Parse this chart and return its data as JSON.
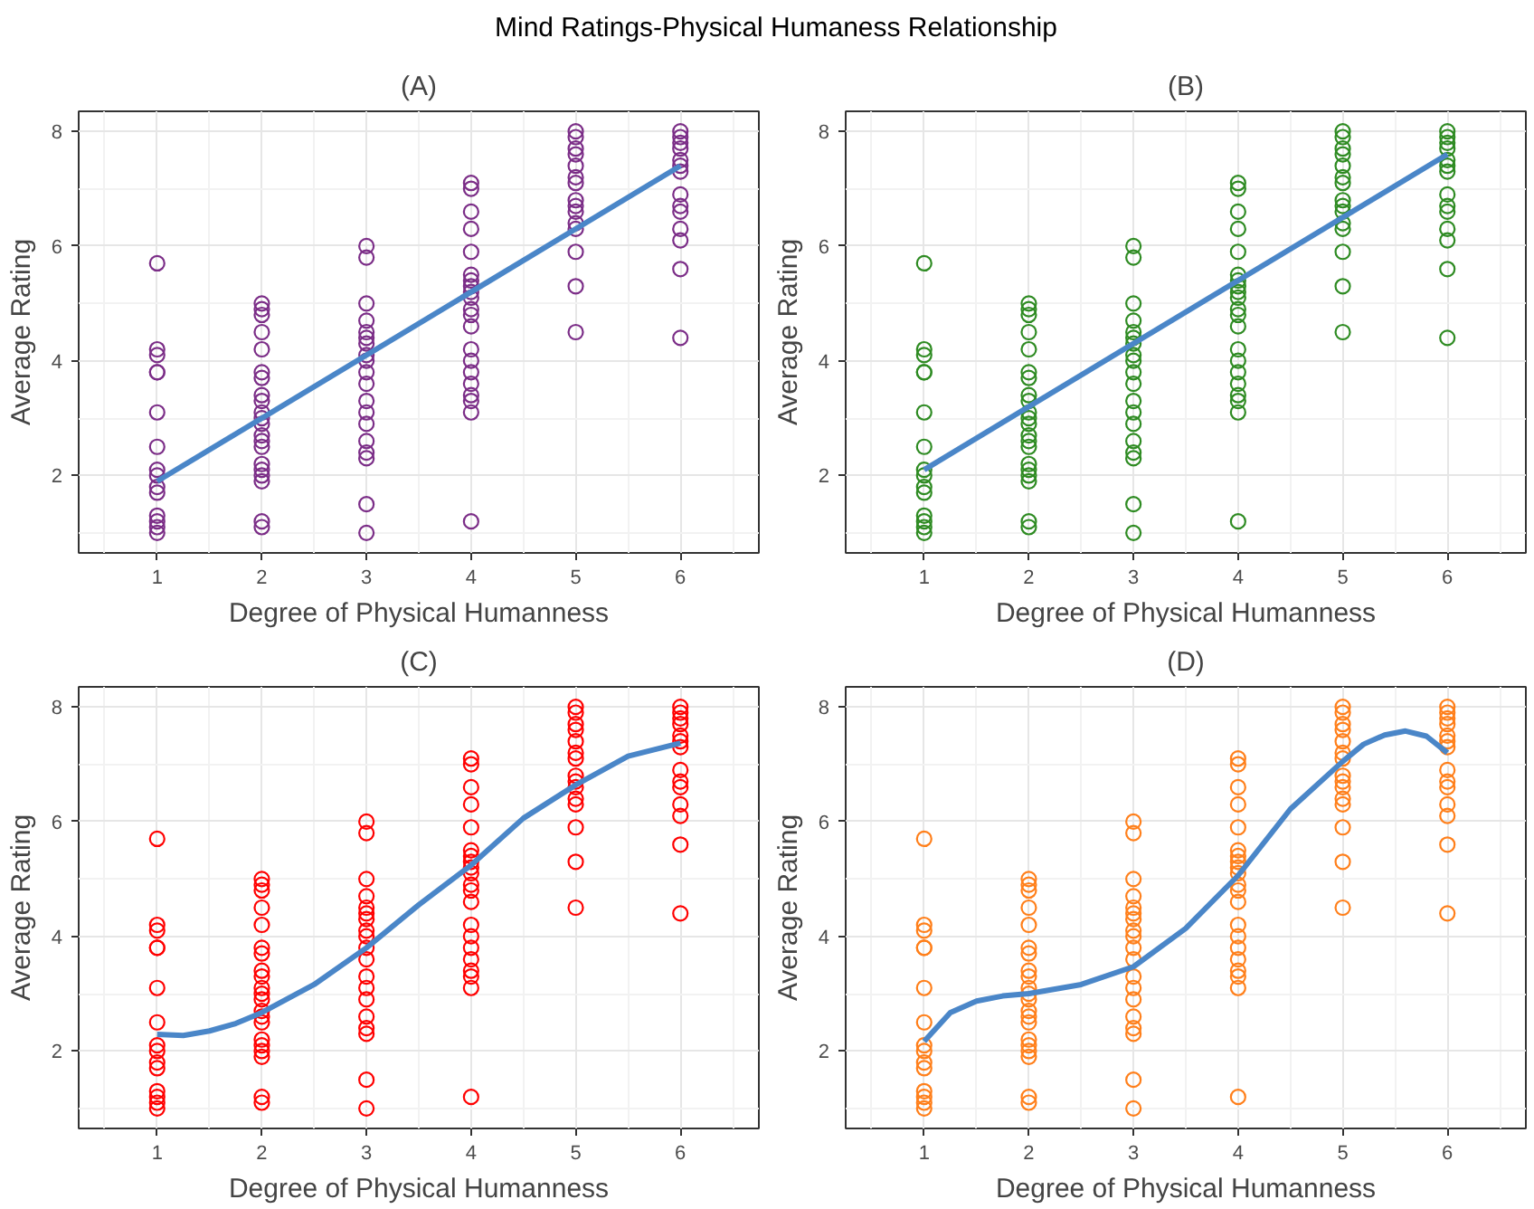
{
  "chart_data": [
    {
      "type": "scatter",
      "title": "(A)",
      "annotations": [
        "Mind Ratings-Physical Humaness Relationship"
      ],
      "xlabel": "Degree of Physical Humanness",
      "ylabel": "Average Rating",
      "xlim": [
        0.25,
        6.75
      ],
      "ylim": [
        0.65,
        8.35
      ],
      "xticks": [
        1,
        2,
        3,
        4,
        5,
        6
      ],
      "yticks": [
        2,
        4,
        6,
        8
      ],
      "grid": true,
      "series": [
        {
          "marker": "circle",
          "color": "#7b2d87",
          "x": [
            1,
            1,
            1,
            1,
            1,
            1,
            1,
            1,
            1,
            1,
            1,
            1,
            1,
            1,
            1,
            2,
            2,
            2,
            2,
            2,
            2,
            2,
            2,
            2,
            2,
            2,
            2,
            2,
            2,
            2,
            2,
            2,
            2,
            2,
            2,
            2,
            3,
            3,
            3,
            3,
            3,
            3,
            3,
            3,
            3,
            3,
            3,
            3,
            3,
            3,
            3,
            3,
            3,
            3,
            3,
            4,
            4,
            4,
            4,
            4,
            4,
            4,
            4,
            4,
            4,
            4,
            4,
            4,
            4,
            4,
            4,
            4,
            4,
            4,
            4,
            4,
            5,
            5,
            5,
            5,
            5,
            5,
            5,
            5,
            5,
            5,
            5,
            5,
            5,
            5,
            5,
            6,
            6,
            6,
            6,
            6,
            6,
            6,
            6,
            6,
            6,
            6,
            6,
            6,
            6
          ],
          "values": [
            5.7,
            4.2,
            4.1,
            3.8,
            3.8,
            3.1,
            2.5,
            2.1,
            2.0,
            1.8,
            1.7,
            1.3,
            1.2,
            1.1,
            1.0,
            5.0,
            4.9,
            4.8,
            4.5,
            4.2,
            3.8,
            3.7,
            3.4,
            3.3,
            3.1,
            3.0,
            2.9,
            2.7,
            2.6,
            2.5,
            2.2,
            2.1,
            2.0,
            1.9,
            1.2,
            1.1,
            6.0,
            5.8,
            5.0,
            4.7,
            4.5,
            4.4,
            4.3,
            4.1,
            4.0,
            3.8,
            3.6,
            3.3,
            3.1,
            2.9,
            2.6,
            2.4,
            2.3,
            1.5,
            1.0,
            7.1,
            7.0,
            6.6,
            6.3,
            5.9,
            5.5,
            5.4,
            5.3,
            5.2,
            5.1,
            4.9,
            4.8,
            4.6,
            4.2,
            4.0,
            3.8,
            3.6,
            3.4,
            3.3,
            3.1,
            1.2,
            8.0,
            7.9,
            7.7,
            7.6,
            7.4,
            7.2,
            7.1,
            6.8,
            6.7,
            6.6,
            6.4,
            6.3,
            5.9,
            5.3,
            4.5,
            8.0,
            7.9,
            7.8,
            7.7,
            7.5,
            7.4,
            7.3,
            6.9,
            6.7,
            6.6,
            6.3,
            6.1,
            5.6,
            4.4
          ]
        },
        {
          "type": "line",
          "color": "#4a86c8",
          "x": [
            1,
            6
          ],
          "values": [
            1.9,
            7.4
          ]
        }
      ]
    },
    {
      "type": "scatter",
      "title": "(B)",
      "xlabel": "Degree of Physical Humanness",
      "ylabel": "Average Rating",
      "xlim": [
        0.25,
        6.75
      ],
      "ylim": [
        0.65,
        8.35
      ],
      "xticks": [
        1,
        2,
        3,
        4,
        5,
        6
      ],
      "yticks": [
        2,
        4,
        6,
        8
      ],
      "grid": true,
      "series": [
        {
          "marker": "circle",
          "color": "#2e8b22",
          "x": [
            1,
            1,
            1,
            1,
            1,
            1,
            1,
            1,
            1,
            1,
            1,
            1,
            1,
            1,
            1,
            2,
            2,
            2,
            2,
            2,
            2,
            2,
            2,
            2,
            2,
            2,
            2,
            2,
            2,
            2,
            2,
            2,
            2,
            2,
            2,
            2,
            3,
            3,
            3,
            3,
            3,
            3,
            3,
            3,
            3,
            3,
            3,
            3,
            3,
            3,
            3,
            3,
            3,
            3,
            3,
            4,
            4,
            4,
            4,
            4,
            4,
            4,
            4,
            4,
            4,
            4,
            4,
            4,
            4,
            4,
            4,
            4,
            4,
            4,
            4,
            4,
            5,
            5,
            5,
            5,
            5,
            5,
            5,
            5,
            5,
            5,
            5,
            5,
            5,
            5,
            5,
            6,
            6,
            6,
            6,
            6,
            6,
            6,
            6,
            6,
            6,
            6,
            6,
            6,
            6
          ],
          "values": [
            5.7,
            4.2,
            4.1,
            3.8,
            3.8,
            3.1,
            2.5,
            2.1,
            2.0,
            1.8,
            1.7,
            1.3,
            1.2,
            1.1,
            1.0,
            5.0,
            4.9,
            4.8,
            4.5,
            4.2,
            3.8,
            3.7,
            3.4,
            3.3,
            3.1,
            3.0,
            2.9,
            2.7,
            2.6,
            2.5,
            2.2,
            2.1,
            2.0,
            1.9,
            1.2,
            1.1,
            6.0,
            5.8,
            5.0,
            4.7,
            4.5,
            4.4,
            4.3,
            4.1,
            4.0,
            3.8,
            3.6,
            3.3,
            3.1,
            2.9,
            2.6,
            2.4,
            2.3,
            1.5,
            1.0,
            7.1,
            7.0,
            6.6,
            6.3,
            5.9,
            5.5,
            5.4,
            5.3,
            5.2,
            5.1,
            4.9,
            4.8,
            4.6,
            4.2,
            4.0,
            3.8,
            3.6,
            3.4,
            3.3,
            3.1,
            1.2,
            8.0,
            7.9,
            7.7,
            7.6,
            7.4,
            7.2,
            7.1,
            6.8,
            6.7,
            6.6,
            6.4,
            6.3,
            5.9,
            5.3,
            4.5,
            8.0,
            7.9,
            7.8,
            7.7,
            7.5,
            7.4,
            7.3,
            6.9,
            6.7,
            6.6,
            6.3,
            6.1,
            5.6,
            4.4
          ]
        },
        {
          "type": "line",
          "color": "#4a86c8",
          "x": [
            1,
            6
          ],
          "values": [
            2.1,
            7.6
          ]
        }
      ]
    },
    {
      "type": "scatter",
      "title": "(C)",
      "xlabel": "Degree of Physical Humanness",
      "ylabel": "Average Rating",
      "xlim": [
        0.25,
        6.75
      ],
      "ylim": [
        0.65,
        8.35
      ],
      "xticks": [
        1,
        2,
        3,
        4,
        5,
        6
      ],
      "yticks": [
        2,
        4,
        6,
        8
      ],
      "grid": true,
      "series": [
        {
          "marker": "circle",
          "color": "#ff0000",
          "x": [
            1,
            1,
            1,
            1,
            1,
            1,
            1,
            1,
            1,
            1,
            1,
            1,
            1,
            1,
            1,
            2,
            2,
            2,
            2,
            2,
            2,
            2,
            2,
            2,
            2,
            2,
            2,
            2,
            2,
            2,
            2,
            2,
            2,
            2,
            2,
            2,
            3,
            3,
            3,
            3,
            3,
            3,
            3,
            3,
            3,
            3,
            3,
            3,
            3,
            3,
            3,
            3,
            3,
            3,
            3,
            4,
            4,
            4,
            4,
            4,
            4,
            4,
            4,
            4,
            4,
            4,
            4,
            4,
            4,
            4,
            4,
            4,
            4,
            4,
            4,
            4,
            5,
            5,
            5,
            5,
            5,
            5,
            5,
            5,
            5,
            5,
            5,
            5,
            5,
            5,
            5,
            6,
            6,
            6,
            6,
            6,
            6,
            6,
            6,
            6,
            6,
            6,
            6,
            6,
            6
          ],
          "values": [
            5.7,
            4.2,
            4.1,
            3.8,
            3.8,
            3.1,
            2.5,
            2.1,
            2.0,
            1.8,
            1.7,
            1.3,
            1.2,
            1.1,
            1.0,
            5.0,
            4.9,
            4.8,
            4.5,
            4.2,
            3.8,
            3.7,
            3.4,
            3.3,
            3.1,
            3.0,
            2.9,
            2.7,
            2.6,
            2.5,
            2.2,
            2.1,
            2.0,
            1.9,
            1.2,
            1.1,
            6.0,
            5.8,
            5.0,
            4.7,
            4.5,
            4.4,
            4.3,
            4.1,
            4.0,
            3.8,
            3.6,
            3.3,
            3.1,
            2.9,
            2.6,
            2.4,
            2.3,
            1.5,
            1.0,
            7.1,
            7.0,
            6.6,
            6.3,
            5.9,
            5.5,
            5.4,
            5.3,
            5.2,
            5.1,
            4.9,
            4.8,
            4.6,
            4.2,
            4.0,
            3.8,
            3.6,
            3.4,
            3.3,
            3.1,
            1.2,
            8.0,
            7.9,
            7.7,
            7.6,
            7.4,
            7.2,
            7.1,
            6.8,
            6.7,
            6.6,
            6.4,
            6.3,
            5.9,
            5.3,
            4.5,
            8.0,
            7.9,
            7.8,
            7.7,
            7.5,
            7.4,
            7.3,
            6.9,
            6.7,
            6.6,
            6.3,
            6.1,
            5.6,
            4.4
          ]
        },
        {
          "type": "line",
          "color": "#4a86c8",
          "x": [
            1,
            1.25,
            1.5,
            1.75,
            2,
            2.5,
            3,
            3.5,
            4,
            4.5,
            5,
            5.5,
            6
          ],
          "values": [
            2.29,
            2.27,
            2.35,
            2.48,
            2.67,
            3.16,
            3.8,
            4.55,
            5.24,
            6.06,
            6.64,
            7.14,
            7.37
          ]
        }
      ]
    },
    {
      "type": "scatter",
      "title": "(D)",
      "xlabel": "Degree of Physical Humanness",
      "ylabel": "Average Rating",
      "xlim": [
        0.25,
        6.75
      ],
      "ylim": [
        0.65,
        8.35
      ],
      "xticks": [
        1,
        2,
        3,
        4,
        5,
        6
      ],
      "yticks": [
        2,
        4,
        6,
        8
      ],
      "grid": true,
      "series": [
        {
          "marker": "circle",
          "color": "#ff7f1a",
          "x": [
            1,
            1,
            1,
            1,
            1,
            1,
            1,
            1,
            1,
            1,
            1,
            1,
            1,
            1,
            1,
            2,
            2,
            2,
            2,
            2,
            2,
            2,
            2,
            2,
            2,
            2,
            2,
            2,
            2,
            2,
            2,
            2,
            2,
            2,
            2,
            2,
            3,
            3,
            3,
            3,
            3,
            3,
            3,
            3,
            3,
            3,
            3,
            3,
            3,
            3,
            3,
            3,
            3,
            3,
            3,
            4,
            4,
            4,
            4,
            4,
            4,
            4,
            4,
            4,
            4,
            4,
            4,
            4,
            4,
            4,
            4,
            4,
            4,
            4,
            4,
            4,
            5,
            5,
            5,
            5,
            5,
            5,
            5,
            5,
            5,
            5,
            5,
            5,
            5,
            5,
            5,
            6,
            6,
            6,
            6,
            6,
            6,
            6,
            6,
            6,
            6,
            6,
            6,
            6,
            6
          ],
          "values": [
            5.7,
            4.2,
            4.1,
            3.8,
            3.8,
            3.1,
            2.5,
            2.1,
            2.0,
            1.8,
            1.7,
            1.3,
            1.2,
            1.1,
            1.0,
            5.0,
            4.9,
            4.8,
            4.5,
            4.2,
            3.8,
            3.7,
            3.4,
            3.3,
            3.1,
            3.0,
            2.9,
            2.7,
            2.6,
            2.5,
            2.2,
            2.1,
            2.0,
            1.9,
            1.2,
            1.1,
            6.0,
            5.8,
            5.0,
            4.7,
            4.5,
            4.4,
            4.3,
            4.1,
            4.0,
            3.8,
            3.6,
            3.3,
            3.1,
            2.9,
            2.6,
            2.4,
            2.3,
            1.5,
            1.0,
            7.1,
            7.0,
            6.6,
            6.3,
            5.9,
            5.5,
            5.4,
            5.3,
            5.2,
            5.1,
            4.9,
            4.8,
            4.6,
            4.2,
            4.0,
            3.8,
            3.6,
            3.4,
            3.3,
            3.1,
            1.2,
            8.0,
            7.9,
            7.7,
            7.6,
            7.4,
            7.2,
            7.1,
            6.8,
            6.7,
            6.6,
            6.4,
            6.3,
            5.9,
            5.3,
            4.5,
            8.0,
            7.9,
            7.8,
            7.7,
            7.5,
            7.4,
            7.3,
            6.9,
            6.7,
            6.6,
            6.3,
            6.1,
            5.6,
            4.4
          ]
        },
        {
          "type": "line",
          "color": "#4a86c8",
          "x": [
            1,
            1.25,
            1.5,
            1.75,
            2,
            2.5,
            3,
            3.5,
            4,
            4.5,
            5,
            5.2,
            5.4,
            5.6,
            5.8,
            6
          ],
          "values": [
            2.17,
            2.67,
            2.87,
            2.96,
            3.0,
            3.16,
            3.47,
            4.14,
            5.06,
            6.22,
            7.05,
            7.35,
            7.51,
            7.58,
            7.49,
            7.2
          ]
        }
      ]
    }
  ]
}
